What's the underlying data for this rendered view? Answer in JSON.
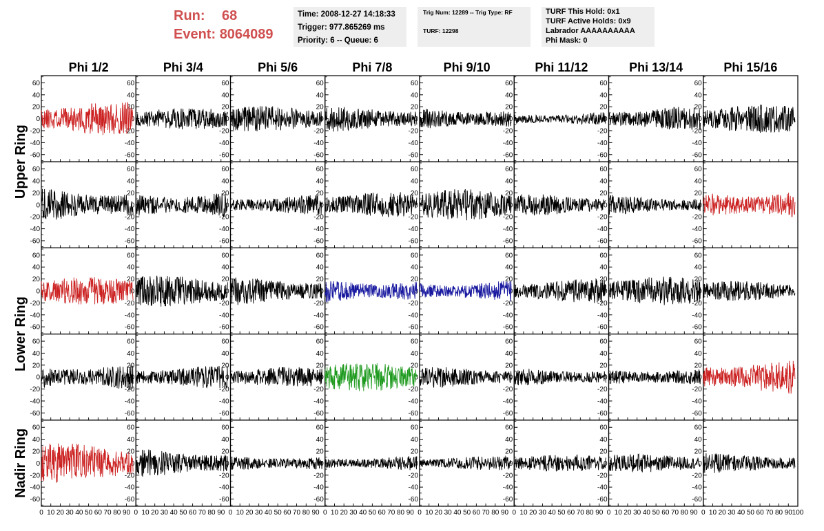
{
  "header": {
    "run_label": "Run:",
    "run_value": "68",
    "event_label": "Event:",
    "event_value": "8064089"
  },
  "info_box_1": {
    "time": "Time: 2008-12-27 14:18:33",
    "trigger": "Trigger: 977.865269 ms",
    "priority": "Priority: 6 -- Queue: 6"
  },
  "info_box_2": {
    "trig": "Trig Num: 12289 -- Trig Type: RF",
    "turf": "TURF: 12298"
  },
  "info_box_3": {
    "this_hold": "TURF This Hold: 0x1",
    "active_holds": "TURF Active Holds: 0x9",
    "labrador": "Labrador AAAAAAAAAA",
    "phi_mask": "Phi Mask: 0"
  },
  "chart_data": {
    "type": "line",
    "columns": [
      "Phi 1/2",
      "Phi 3/4",
      "Phi 5/6",
      "Phi 7/8",
      "Phi 9/10",
      "Phi 11/12",
      "Phi 13/14",
      "Phi 15/16"
    ],
    "row_groups": [
      {
        "label": "Upper Ring",
        "rows": [
          0,
          1
        ]
      },
      {
        "label": "Lower Ring",
        "rows": [
          2,
          3
        ]
      },
      {
        "label": "Nadir Ring",
        "rows": [
          4
        ]
      }
    ],
    "x_range": [
      0,
      100
    ],
    "x_ticks": [
      0,
      10,
      20,
      30,
      40,
      50,
      60,
      70,
      80,
      90,
      100
    ],
    "y_range": [
      -72,
      72
    ],
    "y_ticks": [
      -60,
      -40,
      -20,
      0,
      20,
      40,
      60
    ],
    "sample_count": 260,
    "x_max_data": 97,
    "colors": {
      "black": "#000000",
      "red": "#cc2222",
      "blue": "#1a1aa0",
      "green": "#1e9a1e"
    },
    "traces": [
      {
        "row": 0,
        "col": 0,
        "color": "red",
        "amplitude": 24,
        "seed": 11
      },
      {
        "row": 0,
        "col": 1,
        "color": "black",
        "amplitude": 15,
        "seed": 12
      },
      {
        "row": 0,
        "col": 2,
        "color": "black",
        "amplitude": 18,
        "seed": 13
      },
      {
        "row": 0,
        "col": 3,
        "color": "black",
        "amplitude": 18,
        "seed": 14
      },
      {
        "row": 0,
        "col": 4,
        "color": "black",
        "amplitude": 16,
        "seed": 15
      },
      {
        "row": 0,
        "col": 5,
        "color": "black",
        "amplitude": 10,
        "seed": 16
      },
      {
        "row": 0,
        "col": 6,
        "color": "black",
        "amplitude": 17,
        "seed": 17
      },
      {
        "row": 0,
        "col": 7,
        "color": "black",
        "amplitude": 20,
        "seed": 18
      },
      {
        "row": 1,
        "col": 0,
        "color": "black",
        "amplitude": 24,
        "seed": 21
      },
      {
        "row": 1,
        "col": 1,
        "color": "black",
        "amplitude": 20,
        "seed": 22
      },
      {
        "row": 1,
        "col": 2,
        "color": "black",
        "amplitude": 14,
        "seed": 23
      },
      {
        "row": 1,
        "col": 3,
        "color": "black",
        "amplitude": 18,
        "seed": 24
      },
      {
        "row": 1,
        "col": 4,
        "color": "black",
        "amplitude": 22,
        "seed": 25
      },
      {
        "row": 1,
        "col": 5,
        "color": "black",
        "amplitude": 15,
        "seed": 26
      },
      {
        "row": 1,
        "col": 6,
        "color": "black",
        "amplitude": 14,
        "seed": 27
      },
      {
        "row": 1,
        "col": 7,
        "color": "red",
        "amplitude": 22,
        "seed": 28
      },
      {
        "row": 2,
        "col": 0,
        "color": "red",
        "amplitude": 20,
        "seed": 31
      },
      {
        "row": 2,
        "col": 1,
        "color": "black",
        "amplitude": 22,
        "seed": 32
      },
      {
        "row": 2,
        "col": 2,
        "color": "black",
        "amplitude": 20,
        "seed": 33
      },
      {
        "row": 2,
        "col": 3,
        "color": "blue",
        "amplitude": 18,
        "seed": 34
      },
      {
        "row": 2,
        "col": 4,
        "color": "blue",
        "amplitude": 15,
        "seed": 35
      },
      {
        "row": 2,
        "col": 5,
        "color": "black",
        "amplitude": 17,
        "seed": 36
      },
      {
        "row": 2,
        "col": 6,
        "color": "black",
        "amplitude": 20,
        "seed": 37
      },
      {
        "row": 2,
        "col": 7,
        "color": "black",
        "amplitude": 14,
        "seed": 38
      },
      {
        "row": 3,
        "col": 0,
        "color": "black",
        "amplitude": 20,
        "seed": 41
      },
      {
        "row": 3,
        "col": 1,
        "color": "black",
        "amplitude": 16,
        "seed": 42
      },
      {
        "row": 3,
        "col": 2,
        "color": "black",
        "amplitude": 14,
        "seed": 43
      },
      {
        "row": 3,
        "col": 3,
        "color": "green",
        "amplitude": 20,
        "seed": 44
      },
      {
        "row": 3,
        "col": 4,
        "color": "black",
        "amplitude": 15,
        "seed": 45
      },
      {
        "row": 3,
        "col": 5,
        "color": "black",
        "amplitude": 13,
        "seed": 46
      },
      {
        "row": 3,
        "col": 6,
        "color": "black",
        "amplitude": 13,
        "seed": 47
      },
      {
        "row": 3,
        "col": 7,
        "color": "red",
        "amplitude": 24,
        "seed": 48
      },
      {
        "row": 4,
        "col": 0,
        "color": "red",
        "amplitude": 28,
        "seed": 51
      },
      {
        "row": 4,
        "col": 1,
        "color": "black",
        "amplitude": 20,
        "seed": 52
      },
      {
        "row": 4,
        "col": 2,
        "color": "black",
        "amplitude": 12,
        "seed": 53
      },
      {
        "row": 4,
        "col": 3,
        "color": "black",
        "amplitude": 10,
        "seed": 54
      },
      {
        "row": 4,
        "col": 4,
        "color": "black",
        "amplitude": 10,
        "seed": 55
      },
      {
        "row": 4,
        "col": 5,
        "color": "black",
        "amplitude": 12,
        "seed": 56
      },
      {
        "row": 4,
        "col": 6,
        "color": "black",
        "amplitude": 13,
        "seed": 57
      },
      {
        "row": 4,
        "col": 7,
        "color": "black",
        "amplitude": 14,
        "seed": 58
      }
    ]
  }
}
